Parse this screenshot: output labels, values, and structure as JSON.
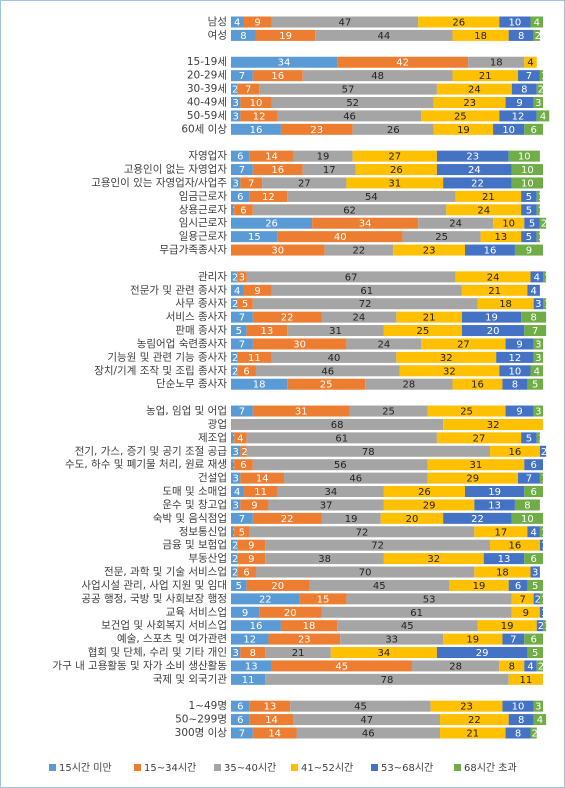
{
  "chart_data": {
    "type": "stacked-bar",
    "categories": [
      "남성",
      "여성",
      null,
      "15-19세",
      "20-29세",
      "30-39세",
      "40-49세",
      "50-59세",
      "60세 이상",
      null,
      "자영업자",
      "고용인이 없는 자영업자",
      "고용인이 있는 자영업자/사업주",
      "임금근로자",
      "상용근로자",
      "임시근로자",
      "일용근로자",
      "무급가족종사자",
      null,
      "관리자",
      "전문가 및 관련 종사자",
      "사무 종사자",
      "서비스 종사자",
      "판매 종사자",
      "농림어업 숙련종사자",
      "기능원 및 관련 기능 종사자",
      "장치/기계 조작 및 조립 종사자",
      "단순노무 종사자",
      null,
      "농업, 임업 및 어업",
      "광업",
      "제조업",
      "전기, 가스, 증기 및 공기 조절 공급",
      "수도, 하수 및 폐기물 처리, 원료 재생",
      "건설업",
      "도매 및 소매업",
      "운수 및 창고업",
      "숙박 및 음식점업",
      "정보통신업",
      "금융 및 보험업",
      "부동산업",
      "전문, 과학 및 기술 서비스업",
      "사업시설 관리, 사업 지원 및 임대",
      "공공 행정, 국방 및 사회보장 행정",
      "교육 서비스업",
      "보건업 및 사회복지 서비스업",
      "예술, 스포츠 및 여가관련",
      "협회 및 단체, 수리 및 기타 개인",
      "가구 내 고용활동 및 자가 소비 생산활동",
      "국제 및 외국기관",
      null,
      "1~49명",
      "50~299명",
      "300명 이상"
    ],
    "series": [
      {
        "name": "15시간 미만",
        "color": "#5b9bd5",
        "values": [
          4,
          8,
          null,
          34,
          7,
          2,
          3,
          3,
          16,
          null,
          6,
          7,
          3,
          6,
          1,
          26,
          15,
          null,
          null,
          2,
          4,
          2,
          7,
          5,
          7,
          2,
          2,
          18,
          null,
          7,
          0,
          1,
          3,
          1,
          3,
          4,
          3,
          7,
          1,
          2,
          2,
          2,
          5,
          22,
          9,
          16,
          12,
          3,
          13,
          11,
          null,
          6,
          6,
          7
        ]
      },
      {
        "name": "15~34시간",
        "color": "#ed7d31",
        "values": [
          9,
          19,
          null,
          42,
          16,
          7,
          10,
          12,
          23,
          null,
          14,
          16,
          7,
          12,
          6,
          34,
          40,
          30,
          null,
          3,
          9,
          5,
          22,
          13,
          30,
          11,
          6,
          25,
          null,
          31,
          null,
          4,
          2,
          6,
          14,
          11,
          9,
          22,
          5,
          9,
          9,
          6,
          20,
          15,
          20,
          18,
          23,
          8,
          45,
          0,
          null,
          13,
          14,
          14
        ]
      },
      {
        "name": "35~40시간",
        "color": "#a5a5a5",
        "values": [
          47,
          44,
          null,
          18,
          48,
          57,
          52,
          46,
          26,
          null,
          19,
          17,
          27,
          54,
          62,
          24,
          25,
          22,
          null,
          67,
          61,
          72,
          24,
          31,
          24,
          40,
          46,
          28,
          null,
          25,
          68,
          61,
          78,
          56,
          46,
          34,
          37,
          19,
          72,
          72,
          38,
          70,
          45,
          53,
          61,
          45,
          33,
          21,
          28,
          78,
          null,
          45,
          47,
          46
        ]
      },
      {
        "name": "41~52시간",
        "color": "#ffc000",
        "values": [
          26,
          18,
          null,
          4,
          21,
          24,
          23,
          25,
          19,
          null,
          27,
          26,
          31,
          21,
          24,
          10,
          13,
          23,
          null,
          24,
          21,
          18,
          21,
          25,
          27,
          32,
          32,
          16,
          null,
          25,
          32,
          27,
          16,
          31,
          29,
          26,
          29,
          20,
          17,
          16,
          32,
          18,
          19,
          7,
          9,
          19,
          19,
          34,
          8,
          11,
          null,
          23,
          22,
          21
        ]
      },
      {
        "name": "53~68시간",
        "color": "#4472c4",
        "values": [
          10,
          8,
          null,
          null,
          7,
          8,
          9,
          12,
          10,
          null,
          23,
          24,
          22,
          5,
          5,
          5,
          5,
          16,
          null,
          4,
          4,
          3,
          19,
          20,
          9,
          12,
          10,
          8,
          null,
          9,
          null,
          5,
          2,
          6,
          7,
          19,
          13,
          22,
          4,
          1,
          13,
          3,
          6,
          2,
          1,
          2,
          7,
          29,
          4,
          0,
          null,
          10,
          8,
          8
        ]
      },
      {
        "name": "68시간 초과",
        "color": "#70ad47",
        "values": [
          4,
          2,
          null,
          0,
          1,
          2,
          3,
          4,
          6,
          null,
          10,
          10,
          10,
          1,
          1,
          2,
          1,
          9,
          null,
          1,
          0,
          1,
          8,
          7,
          3,
          3,
          4,
          5,
          null,
          3,
          0,
          1,
          0,
          0,
          1,
          6,
          8,
          10,
          1,
          0,
          6,
          0,
          5,
          1,
          0,
          1,
          6,
          5,
          2,
          null,
          null,
          3,
          4,
          2
        ]
      }
    ],
    "legend": "bottom"
  }
}
